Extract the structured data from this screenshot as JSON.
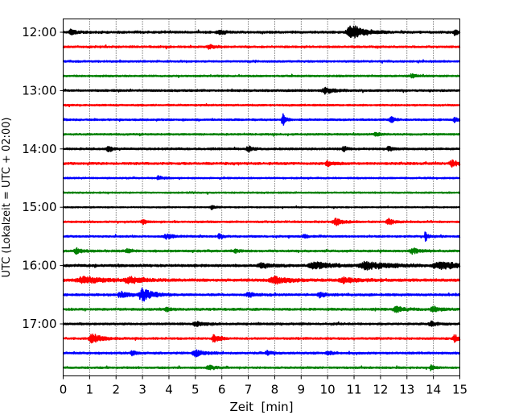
{
  "chart_data": {
    "type": "line",
    "title": "",
    "xlabel": "Zeit  [min]",
    "ylabel": "UTC (Lokalzeit = UTC + 02:00)",
    "xlim": [
      0,
      15
    ],
    "x_ticks": [
      "0",
      "1",
      "2",
      "3",
      "4",
      "5",
      "6",
      "7",
      "8",
      "9",
      "10",
      "11",
      "12",
      "13",
      "14",
      "15"
    ],
    "y_tick_labels": [
      "12:00",
      "13:00",
      "14:00",
      "15:00",
      "16:00",
      "17:00"
    ],
    "trace_interval_minutes": 15,
    "start_time": "12:00",
    "grid": "vertical dotted",
    "color_cycle": [
      "#000000",
      "#ff0000",
      "#0000ff",
      "#008000"
    ],
    "traces": [
      {
        "start": "12:00",
        "color": "#000000",
        "noise": 0.45,
        "events": [
          {
            "t": 0.3,
            "amp": 1.5,
            "dur": 0.25
          },
          {
            "t": 5.9,
            "amp": 1.3,
            "dur": 0.3
          },
          {
            "t": 10.9,
            "amp": 4.0,
            "dur": 0.6
          },
          {
            "t": 14.8,
            "amp": 1.4,
            "dur": 0.2
          }
        ]
      },
      {
        "start": "12:15",
        "color": "#ff0000",
        "noise": 0.4,
        "events": [
          {
            "t": 5.5,
            "amp": 1.2,
            "dur": 0.3
          }
        ]
      },
      {
        "start": "12:30",
        "color": "#0000ff",
        "noise": 0.35,
        "events": []
      },
      {
        "start": "12:45",
        "color": "#008000",
        "noise": 0.35,
        "events": [
          {
            "t": 13.2,
            "amp": 1.0,
            "dur": 0.2
          }
        ]
      },
      {
        "start": "13:00",
        "color": "#000000",
        "noise": 0.4,
        "events": [
          {
            "t": 9.9,
            "amp": 1.5,
            "dur": 0.4
          }
        ]
      },
      {
        "start": "13:15",
        "color": "#ff0000",
        "noise": 0.35,
        "events": []
      },
      {
        "start": "13:30",
        "color": "#0000ff",
        "noise": 0.35,
        "events": [
          {
            "t": 8.3,
            "amp": 3.2,
            "dur": 0.15
          },
          {
            "t": 12.4,
            "amp": 1.4,
            "dur": 0.2
          },
          {
            "t": 14.8,
            "amp": 1.2,
            "dur": 0.2
          }
        ]
      },
      {
        "start": "13:45",
        "color": "#008000",
        "noise": 0.35,
        "events": [
          {
            "t": 11.8,
            "amp": 1.2,
            "dur": 0.2
          }
        ]
      },
      {
        "start": "14:00",
        "color": "#000000",
        "noise": 0.4,
        "events": [
          {
            "t": 1.7,
            "amp": 1.3,
            "dur": 0.2
          },
          {
            "t": 7.0,
            "amp": 1.6,
            "dur": 0.2
          },
          {
            "t": 10.6,
            "amp": 1.3,
            "dur": 0.2
          },
          {
            "t": 12.3,
            "amp": 1.2,
            "dur": 0.2
          }
        ]
      },
      {
        "start": "14:15",
        "color": "#ff0000",
        "noise": 0.45,
        "events": [
          {
            "t": 10.0,
            "amp": 1.4,
            "dur": 0.3
          },
          {
            "t": 14.7,
            "amp": 1.6,
            "dur": 0.35
          }
        ]
      },
      {
        "start": "14:30",
        "color": "#0000ff",
        "noise": 0.3,
        "events": [
          {
            "t": 3.6,
            "amp": 1.2,
            "dur": 0.2
          }
        ]
      },
      {
        "start": "14:45",
        "color": "#008000",
        "noise": 0.28,
        "events": []
      },
      {
        "start": "15:00",
        "color": "#000000",
        "noise": 0.25,
        "events": [
          {
            "t": 5.6,
            "amp": 1.0,
            "dur": 0.2
          }
        ]
      },
      {
        "start": "15:15",
        "color": "#ff0000",
        "noise": 0.35,
        "events": [
          {
            "t": 3.0,
            "amp": 1.3,
            "dur": 0.2
          },
          {
            "t": 10.3,
            "amp": 1.8,
            "dur": 0.4
          },
          {
            "t": 12.3,
            "amp": 1.6,
            "dur": 0.3
          }
        ]
      },
      {
        "start": "15:30",
        "color": "#0000ff",
        "noise": 0.35,
        "events": [
          {
            "t": 3.9,
            "amp": 1.3,
            "dur": 0.3
          },
          {
            "t": 5.9,
            "amp": 1.5,
            "dur": 0.15
          },
          {
            "t": 9.1,
            "amp": 1.0,
            "dur": 0.2
          },
          {
            "t": 13.7,
            "amp": 3.5,
            "dur": 0.1
          }
        ]
      },
      {
        "start": "15:45",
        "color": "#008000",
        "noise": 0.4,
        "events": [
          {
            "t": 0.5,
            "amp": 1.3,
            "dur": 0.3
          },
          {
            "t": 2.4,
            "amp": 1.2,
            "dur": 0.2
          },
          {
            "t": 6.5,
            "amp": 1.2,
            "dur": 0.2
          },
          {
            "t": 13.2,
            "amp": 1.5,
            "dur": 0.4
          }
        ]
      },
      {
        "start": "16:00",
        "color": "#000000",
        "noise": 0.5,
        "events": [
          {
            "t": 7.5,
            "amp": 1.2,
            "dur": 0.5
          },
          {
            "t": 9.5,
            "amp": 1.8,
            "dur": 0.8
          },
          {
            "t": 11.5,
            "amp": 2.0,
            "dur": 1.0
          },
          {
            "t": 14.3,
            "amp": 1.8,
            "dur": 1.2
          }
        ]
      },
      {
        "start": "16:15",
        "color": "#ff0000",
        "noise": 0.55,
        "events": [
          {
            "t": 0.8,
            "amp": 1.6,
            "dur": 1.0
          },
          {
            "t": 2.5,
            "amp": 1.5,
            "dur": 0.6
          },
          {
            "t": 8.0,
            "amp": 1.6,
            "dur": 0.7
          },
          {
            "t": 10.6,
            "amp": 1.4,
            "dur": 0.6
          }
        ]
      },
      {
        "start": "16:30",
        "color": "#0000ff",
        "noise": 0.45,
        "events": [
          {
            "t": 3.0,
            "amp": 3.6,
            "dur": 0.5
          },
          {
            "t": 2.2,
            "amp": 1.4,
            "dur": 0.4
          },
          {
            "t": 7.0,
            "amp": 1.2,
            "dur": 0.3
          },
          {
            "t": 9.7,
            "amp": 1.1,
            "dur": 0.3
          }
        ]
      },
      {
        "start": "16:45",
        "color": "#008000",
        "noise": 0.45,
        "events": [
          {
            "t": 3.9,
            "amp": 1.3,
            "dur": 0.2
          },
          {
            "t": 12.6,
            "amp": 1.2,
            "dur": 0.5
          },
          {
            "t": 14.0,
            "amp": 1.2,
            "dur": 0.4
          }
        ]
      },
      {
        "start": "17:00",
        "color": "#000000",
        "noise": 0.4,
        "events": [
          {
            "t": 5.0,
            "amp": 1.2,
            "dur": 0.4
          },
          {
            "t": 13.9,
            "amp": 1.3,
            "dur": 0.3
          }
        ]
      },
      {
        "start": "17:15",
        "color": "#ff0000",
        "noise": 0.4,
        "events": [
          {
            "t": 1.1,
            "amp": 2.8,
            "dur": 0.4
          },
          {
            "t": 5.7,
            "amp": 1.8,
            "dur": 0.3
          },
          {
            "t": 14.8,
            "amp": 1.8,
            "dur": 0.3
          }
        ]
      },
      {
        "start": "17:30",
        "color": "#0000ff",
        "noise": 0.4,
        "events": [
          {
            "t": 2.6,
            "amp": 1.3,
            "dur": 0.2
          },
          {
            "t": 5.0,
            "amp": 1.6,
            "dur": 0.4
          },
          {
            "t": 7.7,
            "amp": 1.3,
            "dur": 0.2
          },
          {
            "t": 10.0,
            "amp": 1.2,
            "dur": 0.2
          }
        ]
      },
      {
        "start": "17:45",
        "color": "#008000",
        "noise": 0.35,
        "events": [
          {
            "t": 5.5,
            "amp": 1.3,
            "dur": 0.3
          },
          {
            "t": 13.9,
            "amp": 1.2,
            "dur": 0.2
          }
        ]
      }
    ]
  }
}
